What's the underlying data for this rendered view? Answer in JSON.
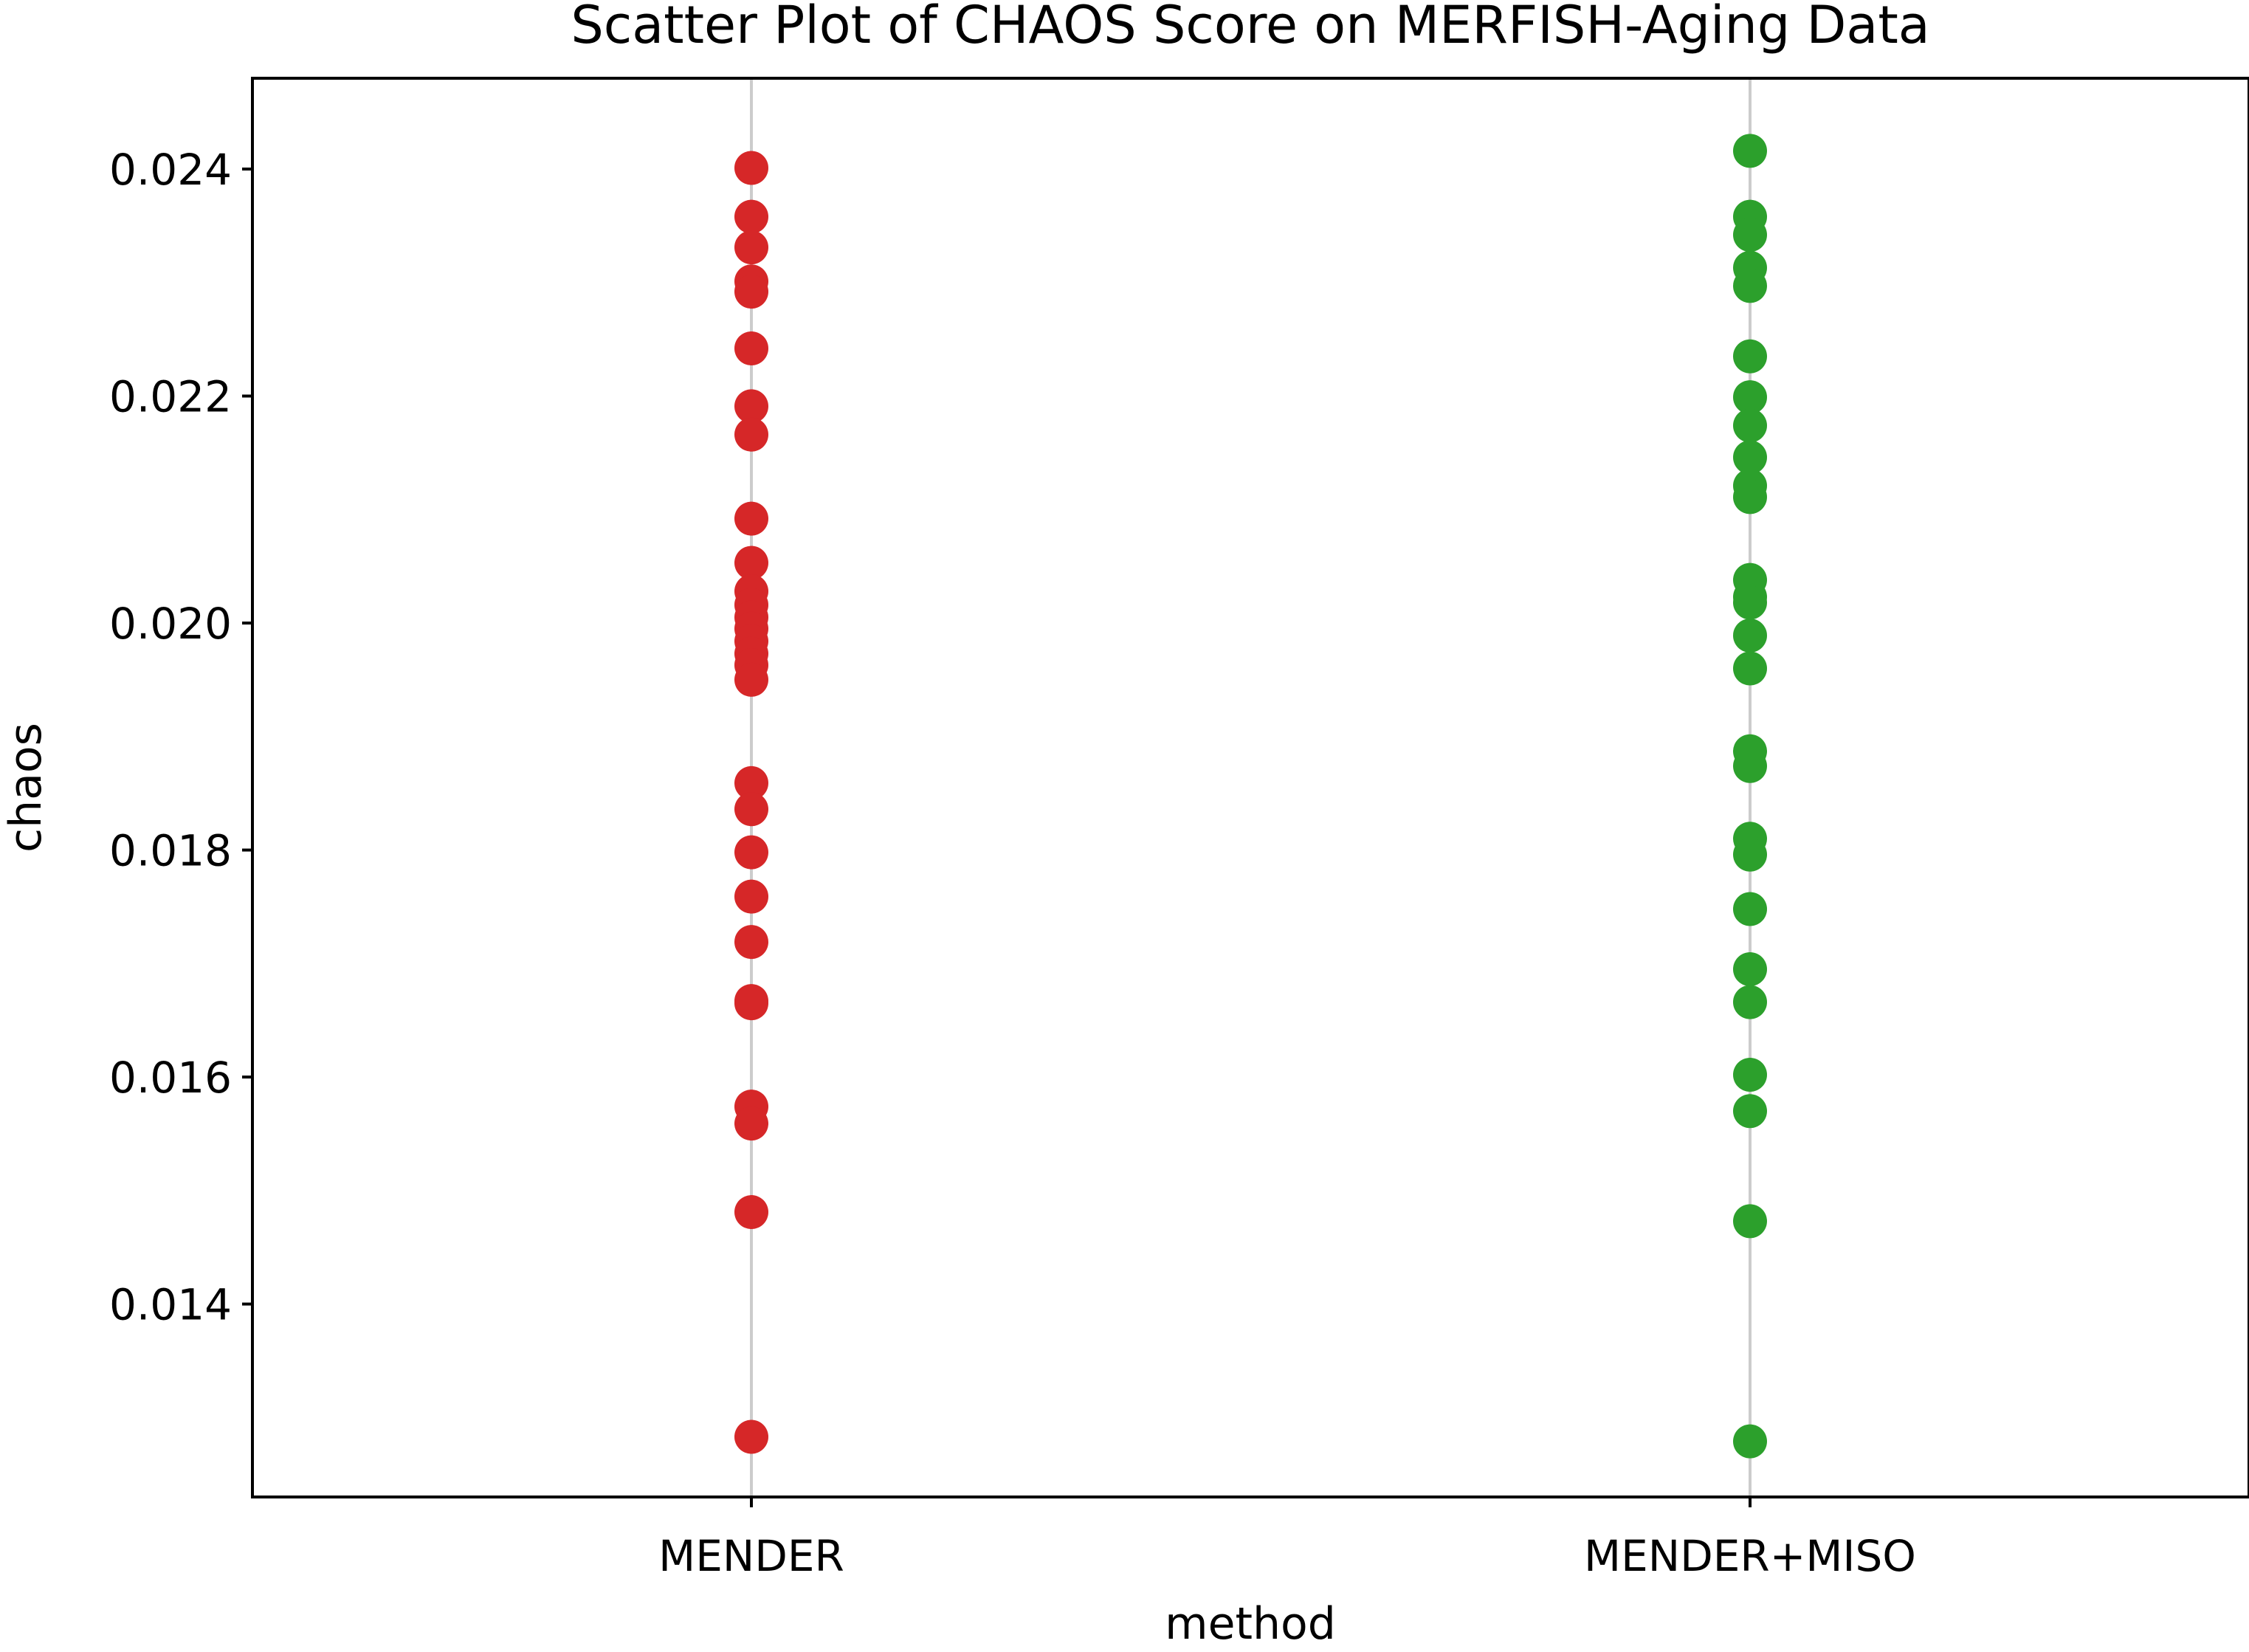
{
  "chart_data": {
    "type": "scatter",
    "title": "Scatter Plot of CHAOS Score on MERFISH-Aging Data",
    "xlabel": "method",
    "ylabel": "chaos",
    "categories": [
      "MENDER",
      "MENDER+MISO"
    ],
    "ylim": [
      0.0123,
      0.0248
    ],
    "yticks": [
      0.014,
      0.016,
      0.018,
      0.02,
      0.022,
      0.024
    ],
    "ytick_labels": [
      "0.014",
      "0.016",
      "0.018",
      "0.020",
      "0.022",
      "0.024"
    ],
    "grid": "vertical gridlines at each category",
    "legend": "none",
    "series": [
      {
        "category": "MENDER",
        "color": "#d62728",
        "values": [
          0.02401,
          0.02358,
          0.02331,
          0.02301,
          0.02292,
          0.02242,
          0.02191,
          0.02166,
          0.02092,
          0.02053,
          0.02028,
          0.02016,
          0.02005,
          0.01995,
          0.01984,
          0.01973,
          0.01963,
          0.0195,
          0.01859,
          0.01836,
          0.01798,
          0.01759,
          0.01719,
          0.01667,
          0.01665,
          0.01574,
          0.01559,
          0.01481,
          0.01283
        ]
      },
      {
        "category": "MENDER+MISO",
        "color": "#2ca02c",
        "values": [
          0.02416,
          0.02358,
          0.02342,
          0.02313,
          0.02297,
          0.02235,
          0.02199,
          0.02174,
          0.02146,
          0.02121,
          0.02111,
          0.02038,
          0.02023,
          0.02018,
          0.01989,
          0.0196,
          0.01887,
          0.01874,
          0.0181,
          0.01796,
          0.01748,
          0.01695,
          0.01666,
          0.01602,
          0.0157,
          0.01473,
          0.01279
        ]
      }
    ]
  }
}
